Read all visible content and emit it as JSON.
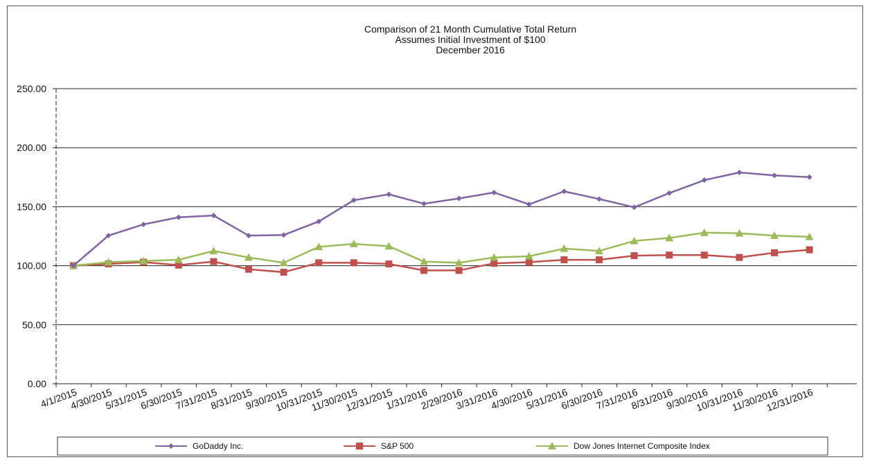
{
  "chart_data": {
    "type": "line",
    "title": [
      "Comparison of 21 Month Cumulative Total Return",
      "Assumes Initial Investment of $100",
      "December 2016"
    ],
    "xlabel": "",
    "ylabel": "",
    "categories": [
      "4/1/2015",
      "4/30/2015",
      "5/31/2015",
      "6/30/2015",
      "7/31/2015",
      "8/31/2015",
      "9/30/2015",
      "10/31/2015",
      "11/30/2015",
      "12/31/2015",
      "1/31/2016",
      "2/29/2016",
      "3/31/2016",
      "4/30/2016",
      "5/31/2016",
      "6/30/2016",
      "7/31/2016",
      "8/31/2016",
      "9/30/2016",
      "10/31/2016",
      "11/30/2016",
      "12/31/2016"
    ],
    "y_ticks": [
      "0.00",
      "50.00",
      "100.00",
      "150.00",
      "200.00",
      "250.00"
    ],
    "ylim": [
      0,
      250
    ],
    "grid": "horizontal",
    "legend_position": "bottom",
    "series": [
      {
        "name": "GoDaddy Inc.",
        "color": "#8064a2",
        "marker": "diamond",
        "values": [
          100,
          125.5,
          135,
          141,
          142.5,
          125.5,
          126,
          137.5,
          155.5,
          160.5,
          152.5,
          157,
          162,
          152,
          163,
          156.5,
          149.5,
          161.5,
          172.5,
          179,
          176.5,
          175
        ]
      },
      {
        "name": "S&P 500",
        "color": "#c0504d",
        "marker": "square",
        "values": [
          100,
          101.5,
          103,
          100.5,
          103.5,
          97,
          94.5,
          102.5,
          102.5,
          101.5,
          96,
          96,
          102,
          103,
          105,
          105,
          108.5,
          109,
          109,
          107,
          111,
          113.5
        ]
      },
      {
        "name": "Dow Jones Internet Composite Index",
        "color": "#9bbb59",
        "marker": "triangle",
        "values": [
          100,
          103,
          104,
          105,
          112.5,
          107,
          102.5,
          116,
          118.5,
          116.5,
          103.5,
          102.5,
          107,
          108,
          114.5,
          112.5,
          121,
          123.5,
          128,
          127.5,
          125.5,
          124.5
        ]
      }
    ]
  }
}
